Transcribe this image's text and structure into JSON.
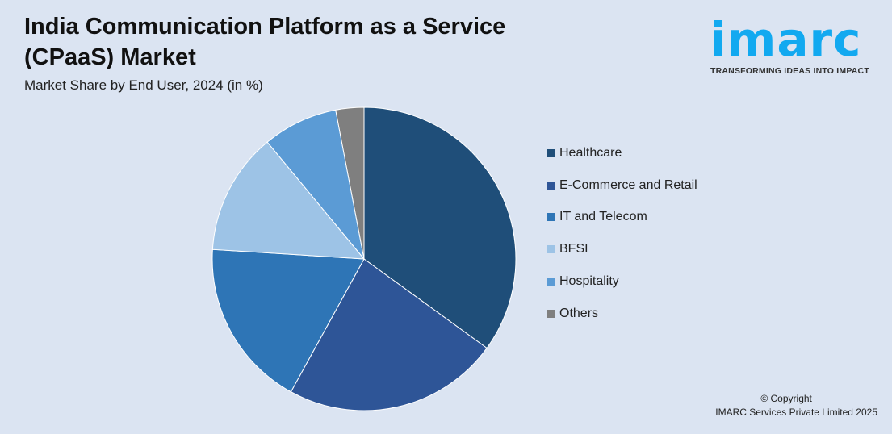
{
  "header": {
    "title": "India Communication Platform as a Service (CPaaS) Market",
    "subtitle": "Market Share by End User, 2024 (in %)"
  },
  "logo": {
    "word": "imarc",
    "tagline": "TRANSFORMING IDEAS INTO IMPACT"
  },
  "footer": {
    "copyright": "© Copyright",
    "company": "IMARC Services Private Limited 2025"
  },
  "chart_data": {
    "type": "pie",
    "title": "India Communication Platform as a Service (CPaaS) Market",
    "subtitle": "Market Share by End User, 2024 (in %)",
    "legend_position": "right",
    "categories": [
      "Healthcare",
      "E-Commerce and Retail",
      "IT and Telecom",
      "BFSI",
      "Hospitality",
      "Others"
    ],
    "values": [
      35,
      23,
      18,
      13,
      8,
      3
    ],
    "colors": [
      "#1f4e79",
      "#2e5597",
      "#2e75b6",
      "#9dc3e6",
      "#5b9bd5",
      "#7f7f7f"
    ]
  }
}
